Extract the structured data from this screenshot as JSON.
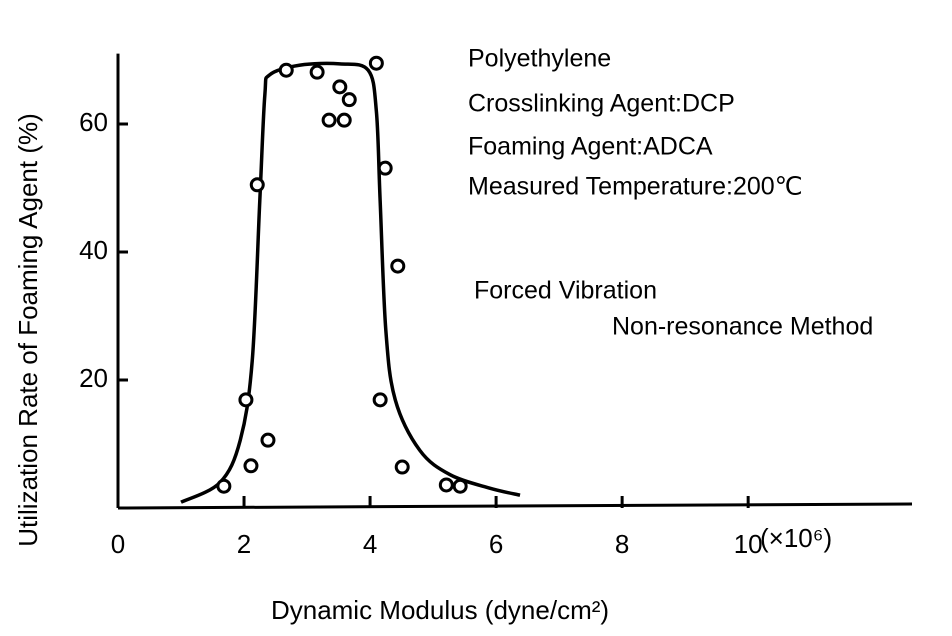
{
  "chart_data": {
    "type": "scatter",
    "x_label": "Dynamic Modulus (dyne/cm²)",
    "y_label": "Utilization Rate of Foaming Agent (%)",
    "x_unit_note": "(×10⁶)",
    "annotations": [
      "Polyethylene",
      "Crosslinking Agent:DCP",
      "Foaming Agent:ADCA",
      "Measured Temperature:200℃",
      "Forced Vibration",
      "Non-resonance Method"
    ],
    "xlim": [
      0,
      12.6
    ],
    "xticks": [
      0,
      2,
      4,
      6,
      8,
      10
    ],
    "ylim": [
      0,
      71
    ],
    "yticks": [
      20,
      40,
      60
    ],
    "color": "#000000",
    "points": {
      "x": [
        1.68,
        2.11,
        2.21,
        2.03,
        2.38,
        2.67,
        3.16,
        3.35,
        3.52,
        3.67,
        3.59,
        4.1,
        4.24,
        4.16,
        4.44,
        4.51,
        5.21,
        5.43
      ],
      "y": [
        3.4,
        6.6,
        50.5,
        16.9,
        10.6,
        68.4,
        68.1,
        60.6,
        65.8,
        63.8,
        60.6,
        69.5,
        53.1,
        16.9,
        37.8,
        6.4,
        3.6,
        3.4
      ]
    },
    "curve": {
      "x": [
        1.0,
        1.62,
        1.94,
        2.13,
        2.25,
        2.33,
        2.41,
        2.89,
        3.52,
        3.97,
        4.1,
        4.16,
        4.25,
        4.4,
        4.79,
        5.27,
        5.9,
        6.38
      ],
      "y": [
        0.9,
        4,
        10.6,
        23,
        48,
        64.5,
        67.7,
        69.2,
        69.4,
        68.4,
        62,
        48,
        27.8,
        16.9,
        9,
        5.2,
        3.1,
        2
      ]
    }
  }
}
